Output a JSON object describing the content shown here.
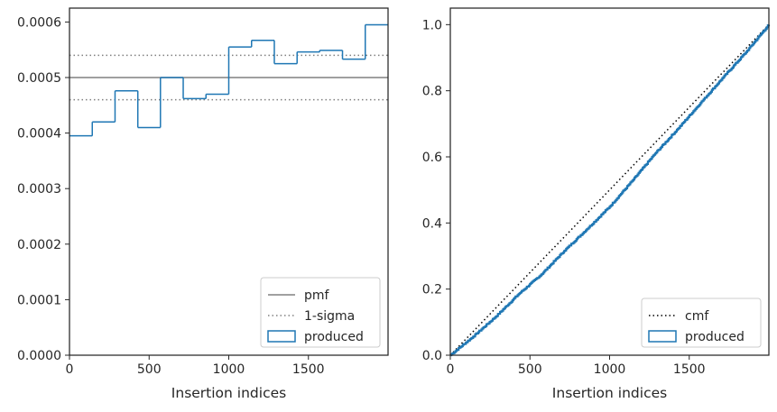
{
  "colors": {
    "produced": "#1f77b4",
    "pmf": "#808080",
    "sigma": "#808080",
    "cmf": "#000000",
    "axis": "#262626"
  },
  "chart_data": [
    {
      "type": "line",
      "step": true,
      "title": "",
      "xlabel": "Insertion indices",
      "ylabel": "",
      "xlim": [
        0,
        2000
      ],
      "ylim": [
        0,
        0.000625
      ],
      "x_ticks": [
        0,
        500,
        1000,
        1500
      ],
      "x_tick_labels": [
        "0",
        "500",
        "1000",
        "1500"
      ],
      "y_ticks": [
        0,
        0.0001,
        0.0002,
        0.0003,
        0.0004,
        0.0005,
        0.0006
      ],
      "y_tick_labels": [
        "0.0000",
        "0.0001",
        "0.0002",
        "0.0003",
        "0.0004",
        "0.0005",
        "0.0006"
      ],
      "grid": false,
      "legend": {
        "position": "lower right",
        "entries": [
          "pmf",
          "1-sigma",
          "produced"
        ]
      },
      "series": [
        {
          "name": "produced",
          "style": "step-histogram",
          "bin_edges": [
            0,
            143,
            286,
            429,
            571,
            714,
            857,
            1000,
            1143,
            1286,
            1429,
            1571,
            1714,
            1857,
            2000
          ],
          "values": [
            0.000395,
            0.00042,
            0.000476,
            0.00041,
            0.0005,
            0.000462,
            0.00047,
            0.000555,
            0.000567,
            0.000525,
            0.000546,
            0.000549,
            0.000533,
            0.000595
          ]
        },
        {
          "name": "pmf",
          "style": "solid-hline",
          "y": 0.0005
        },
        {
          "name": "1-sigma",
          "style": "dotted-hline",
          "y": [
            0.00046,
            0.00054
          ]
        }
      ]
    },
    {
      "type": "line",
      "title": "",
      "xlabel": "Insertion indices",
      "ylabel": "",
      "xlim": [
        0,
        2000
      ],
      "ylim": [
        0,
        1.05
      ],
      "x_ticks": [
        0,
        500,
        1000,
        1500
      ],
      "x_tick_labels": [
        "0",
        "500",
        "1000",
        "1500"
      ],
      "y_ticks": [
        0,
        0.2,
        0.4,
        0.6,
        0.8,
        1.0
      ],
      "y_tick_labels": [
        "0.0",
        "0.2",
        "0.4",
        "0.6",
        "0.8",
        "1.0"
      ],
      "grid": false,
      "legend": {
        "position": "lower right",
        "entries": [
          "cmf",
          "produced"
        ]
      },
      "series": [
        {
          "name": "cmf",
          "style": "dotted",
          "x": [
            0,
            2000
          ],
          "values": [
            0,
            1
          ]
        },
        {
          "name": "produced",
          "style": "step-cumulative",
          "x": [
            0,
            143,
            286,
            429,
            571,
            714,
            857,
            1000,
            1143,
            1286,
            1429,
            1571,
            1714,
            1857,
            2000
          ],
          "values": [
            0,
            0.056,
            0.117,
            0.185,
            0.244,
            0.315,
            0.381,
            0.449,
            0.528,
            0.61,
            0.685,
            0.763,
            0.841,
            0.917,
            1.0
          ]
        }
      ]
    }
  ]
}
